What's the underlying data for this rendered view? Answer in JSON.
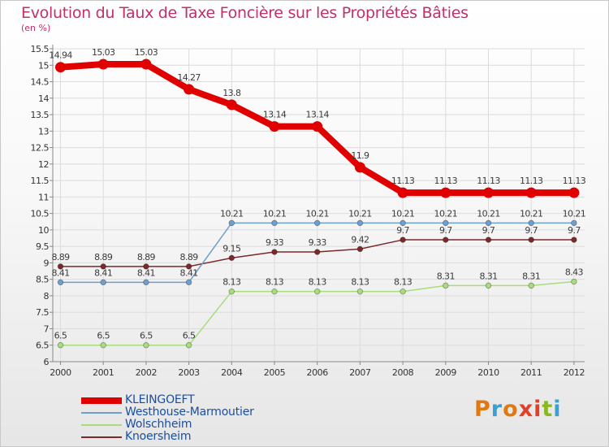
{
  "title": "Evolution du Taux de Taxe Foncière sur les Propriétés Bâties",
  "unit_label": "(en %)",
  "logo": {
    "text": "Proxiti",
    "letter_colors": [
      "#e07a10",
      "#3aa0d0",
      "#e07a10",
      "#e0402a",
      "#e0402a",
      "#8ab820",
      "#3aa0d0"
    ]
  },
  "chart_data": {
    "type": "line",
    "title": "Evolution du Taux de Taxe Foncière sur les Propriétés Bâties",
    "ylabel": "(en %)",
    "xlabel": "",
    "ylim": [
      6,
      15.5
    ],
    "yticks": [
      "6",
      "6.5",
      "7",
      "7.5",
      "8",
      "8.5",
      "9",
      "9.5",
      "10",
      "10.5",
      "11",
      "11.5",
      "12",
      "12.5",
      "13",
      "13.5",
      "14",
      "14.5",
      "15",
      "15.5"
    ],
    "categories": [
      "2000",
      "2001",
      "2002",
      "2003",
      "2004",
      "2005",
      "2006",
      "2007",
      "2008",
      "2009",
      "2010",
      "2011",
      "2012"
    ],
    "series": [
      {
        "name": "KLEINGOEFT",
        "color": "#e00000",
        "values": [
          14.94,
          15.03,
          15.03,
          14.27,
          13.8,
          13.14,
          13.14,
          11.9,
          11.13,
          11.13,
          11.13,
          11.13,
          11.13
        ],
        "labels": [
          "14.94",
          "15.03",
          "15.03",
          "14.27",
          "13.8",
          "13.14",
          "13.14",
          "11.9",
          "11.13",
          "11.13",
          "11.13",
          "11.13",
          "11.13"
        ]
      },
      {
        "name": "Westhouse-Marmoutier",
        "color": "#6f9fcc",
        "values": [
          8.41,
          8.41,
          8.41,
          8.41,
          10.21,
          10.21,
          10.21,
          10.21,
          10.21,
          10.21,
          10.21,
          10.21,
          10.21
        ],
        "labels": [
          "8.41",
          "8.41",
          "8.41",
          "8.41",
          "10.21",
          "10.21",
          "10.21",
          "10.21",
          "10.21",
          "10.21",
          "10.21",
          "10.21",
          "10.21"
        ]
      },
      {
        "name": "Wolschheim",
        "color": "#a8dc7c",
        "values": [
          6.5,
          6.5,
          6.5,
          6.5,
          8.13,
          8.13,
          8.13,
          8.13,
          8.13,
          8.31,
          8.31,
          8.31,
          8.43
        ],
        "labels": [
          "6.5",
          "6.5",
          "6.5",
          "6.5",
          "8.13",
          "8.13",
          "8.13",
          "8.13",
          "8.13",
          "8.31",
          "8.31",
          "8.31",
          "8.43"
        ]
      },
      {
        "name": "Knoersheim",
        "color": "#7a2a2a",
        "values": [
          8.89,
          8.89,
          8.89,
          8.89,
          9.15,
          9.33,
          9.33,
          9.42,
          9.7,
          9.7,
          9.7,
          9.7,
          9.7
        ],
        "labels": [
          "8.89",
          "8.89",
          "8.89",
          "8.89",
          "9.15",
          "9.33",
          "9.33",
          "9.42",
          "9.7",
          "9.7",
          "9.7",
          "9.7",
          "9.7"
        ]
      }
    ]
  }
}
